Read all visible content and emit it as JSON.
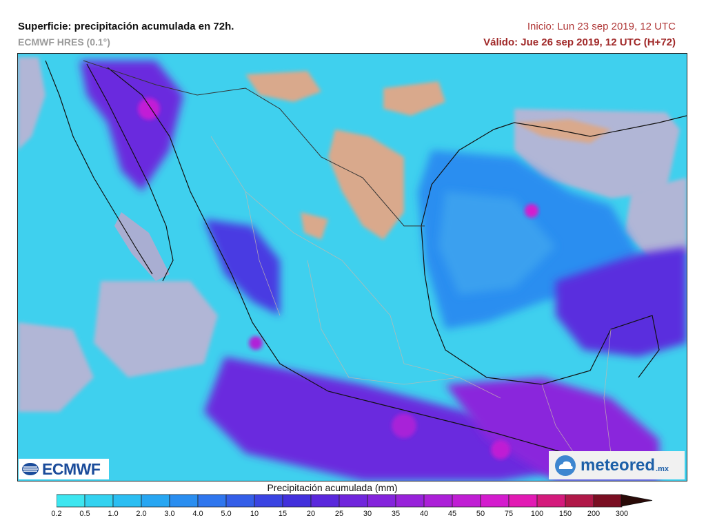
{
  "header": {
    "title": "Superficie: precipitación acumulada en 72h.",
    "model": "ECMWF HRES (0.1°)",
    "init": "Inicio: Lun 23 sep 2019, 12 UTC",
    "valid": "Válido: Jue 26 sep 2019, 12 UTC (H+72)"
  },
  "legend": {
    "title": "Precipitación acumulada (mm)",
    "ticks": [
      "0.2",
      "0.5",
      "1.0",
      "2.0",
      "3.0",
      "4.0",
      "5.0",
      "10",
      "15",
      "20",
      "25",
      "30",
      "35",
      "40",
      "45",
      "50",
      "75",
      "100",
      "150",
      "200",
      "300"
    ],
    "colors": [
      "#3de6f0",
      "#33d2f0",
      "#2bbef2",
      "#27a6f2",
      "#2a8ef0",
      "#2f76ee",
      "#345ee8",
      "#3a44e2",
      "#4230dc",
      "#5a28dc",
      "#7026dc",
      "#8424dc",
      "#9822da",
      "#ac20d8",
      "#c01ed4",
      "#d41cce",
      "#e21ab4",
      "#d41a7c",
      "#b01848",
      "#7a0e22"
    ]
  },
  "logos": {
    "ecmwf": "ECMWF",
    "meteored": "meteored",
    "meteored_suffix": ".mx"
  },
  "map_colors": {
    "ocean_dry": "#b1b6d6",
    "land_dry": "#d9a98c",
    "light_rain": "#3fd6ee",
    "moderate_rain": "#2a8ef0",
    "heavy_rain": "#6a2ade",
    "very_heavy_rain": "#c21ed6"
  }
}
